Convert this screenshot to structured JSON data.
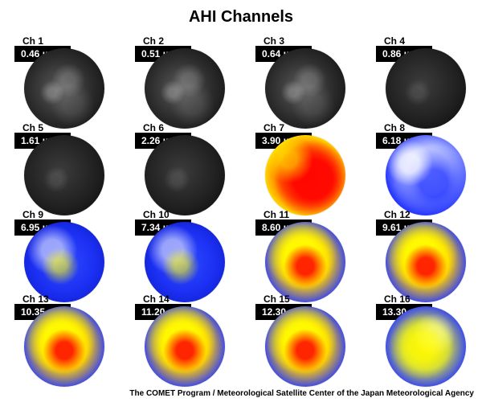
{
  "title": "AHI Channels",
  "channels": [
    {
      "ch": "Ch 1",
      "wavelength": "0.46 µm"
    },
    {
      "ch": "Ch 2",
      "wavelength": "0.51 µm"
    },
    {
      "ch": "Ch 3",
      "wavelength": "0.64 µm"
    },
    {
      "ch": "Ch 4",
      "wavelength": "0.86 µm"
    },
    {
      "ch": "Ch 5",
      "wavelength": "1.61 µm"
    },
    {
      "ch": "Ch 6",
      "wavelength": "2.26 µm"
    },
    {
      "ch": "Ch 7",
      "wavelength": "3.90 µm"
    },
    {
      "ch": "Ch 8",
      "wavelength": "6.18 µm"
    },
    {
      "ch": "Ch 9",
      "wavelength": "6.95 µm"
    },
    {
      "ch": "Ch 10",
      "wavelength": "7.34 µm"
    },
    {
      "ch": "Ch 11",
      "wavelength": "8.60 µm"
    },
    {
      "ch": "Ch 12",
      "wavelength": "9.61 µm"
    },
    {
      "ch": "Ch 13",
      "wavelength": "10.35 µm"
    },
    {
      "ch": "Ch 14",
      "wavelength": "11.20 µm"
    },
    {
      "ch": "Ch 15",
      "wavelength": "12.30 µm"
    },
    {
      "ch": "Ch 16",
      "wavelength": "13.30 µm"
    }
  ],
  "credit": "The COMET Program / Meteorological Satellite Center of the Japan Meteorological Agency"
}
